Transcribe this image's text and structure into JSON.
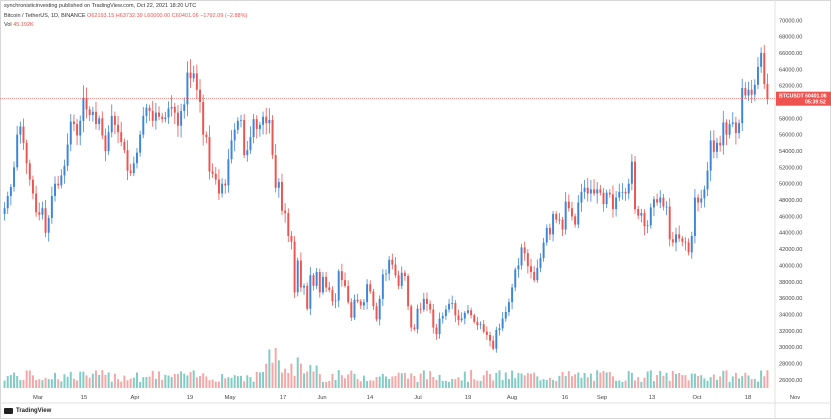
{
  "header": {
    "published_text": "synchronisticinvesting published on TradingView.com, Oct 22, 2021 18:20 UTC"
  },
  "legend": {
    "symbol": "Bitcoin / TetherUS, 1D, BINANCE",
    "ohlc": "O62193.15  H63732.39  L60000.00  C60401.06  −1792.09 (−2.88%)",
    "vol_label": "Vol",
    "vol_value": "45.192K"
  },
  "price_tag": {
    "symbol": "BTCUSDT",
    "price": "60401.06",
    "countdown": "05:39:52"
  },
  "brand": {
    "label": "TradingView"
  },
  "colors": {
    "up": "#26a69a",
    "down": "#ef5350",
    "wick_up": "#3b83d6",
    "candle_up": "#3d85d8"
  },
  "chart_data": {
    "type": "candlestick",
    "title": "Bitcoin / TetherUS, 1D, BINANCE",
    "y_ticks": [
      70000,
      68000,
      66000,
      64000,
      62000,
      60000,
      58000,
      56000,
      54000,
      52000,
      50000,
      48000,
      46000,
      44000,
      42000,
      40000,
      38000,
      36000,
      34000,
      32000,
      30000,
      28000,
      26000
    ],
    "y_tick_labels": [
      "70000.00",
      "68000.00",
      "66000.00",
      "64000.00",
      "62000.00",
      "60000.00",
      "58000.00",
      "56000.00",
      "54000.00",
      "52000.00",
      "50000.00",
      "48000.00",
      "46000.00",
      "44000.00",
      "42000.00",
      "40000.00",
      "38000.00",
      "36000.00",
      "34000.00",
      "32000.00",
      "30000.00",
      "28000.00",
      "26000.00"
    ],
    "ylim": [
      25000,
      71500
    ],
    "x_ticks": [
      "Mar",
      "15",
      "Apr",
      "19",
      "May",
      "17",
      "Jun",
      "14",
      "Jul",
      "19",
      "Aug",
      "16",
      "Sep",
      "13",
      "Oct",
      "18",
      "Nov"
    ],
    "current_price": 60401.06,
    "close_series": [
      47000,
      48500,
      49600,
      52000,
      56000,
      57000,
      55000,
      52500,
      50500,
      48800,
      46500,
      46200,
      47000,
      44000,
      45800,
      48500,
      50000,
      49800,
      51000,
      52200,
      54800,
      57600,
      57300,
      55900,
      57700,
      60500,
      59100,
      58400,
      58800,
      57300,
      58000,
      55900,
      54000,
      56300,
      58300,
      57200,
      56300,
      55100,
      54100,
      51600,
      51300,
      52500,
      53800,
      56000,
      58300,
      59300,
      58900,
      57700,
      58700,
      58200,
      57900,
      58100,
      59200,
      59400,
      58700,
      57100,
      58900,
      59700,
      63600,
      62900,
      63500,
      61500,
      60000,
      56000,
      55700,
      51500,
      51200,
      50500,
      48800,
      50000,
      49800,
      53000,
      55300,
      56600,
      57700,
      57800,
      53500,
      54100,
      55700,
      57900,
      56700,
      57200,
      58200,
      57400,
      57800,
      53500,
      49500,
      50200,
      46700,
      46400,
      43600,
      42900,
      36700,
      40600,
      37300,
      37500,
      34700,
      38800,
      37500,
      39200,
      36700,
      38600,
      37300,
      37000,
      35600,
      35700,
      39300,
      38200,
      37500,
      35500,
      33600,
      35800,
      35600,
      35100,
      35500,
      37700,
      36800,
      35000,
      33400,
      35900,
      38900,
      39000,
      40700,
      40100,
      38800,
      37500,
      39100,
      38700,
      35000,
      32400,
      32200,
      34700,
      34600,
      35900,
      35300,
      34600,
      32400,
      31600,
      33500,
      33800,
      34600,
      35300,
      35400,
      33900,
      33300,
      33500,
      34200,
      34500,
      33900,
      33100,
      32700,
      32800,
      31900,
      31500,
      30800,
      29800,
      32100,
      32300,
      33500,
      34300,
      35500,
      37300,
      39500,
      40000,
      42200,
      41500,
      39900,
      39200,
      38200,
      39700,
      40900,
      42800,
      44600,
      43800,
      46300,
      45600,
      45600,
      44400,
      47800,
      47000,
      46000,
      45000,
      47700,
      49000,
      49500,
      48800,
      49300,
      48800,
      49300,
      48900,
      47500,
      48900,
      48700,
      46900,
      48300,
      49000,
      49000,
      48800,
      50000,
      52700,
      46900,
      46100,
      46400,
      44800,
      44900,
      47100,
      48100,
      47700,
      48300,
      47200,
      47200,
      43200,
      42800,
      43800,
      43300,
      42900,
      42800,
      41600,
      43600,
      48300,
      47700,
      48200,
      49300,
      51600,
      55300,
      53900,
      55000,
      54700,
      57500,
      56000,
      57300,
      57500,
      56200,
      57400,
      61700,
      60800,
      61500,
      60900,
      62100,
      64300,
      66000,
      62200,
      60400
    ]
  }
}
